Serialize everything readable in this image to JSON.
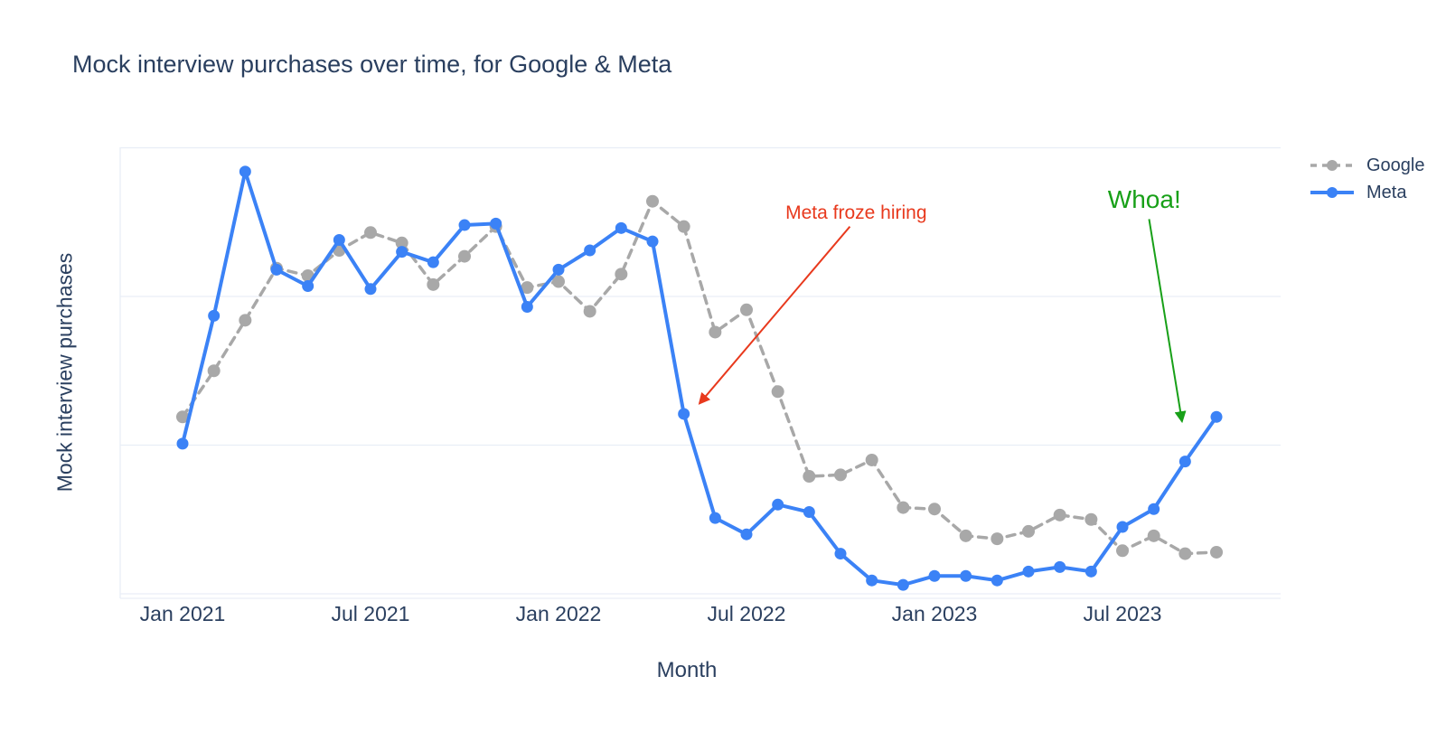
{
  "chart": {
    "title": "Mock interview purchases over time, for Google & Meta",
    "xlabel": "Month",
    "ylabel": "Mock interview purchases"
  },
  "colors": {
    "background": "#ffffff",
    "text": "#2a3f5f",
    "grid": "#e9eef6",
    "google": "#a8a8a8",
    "meta": "#3b82f6",
    "annotation_red": "#e8391d",
    "annotation_green": "#18a018"
  },
  "legend": {
    "items": [
      {
        "label": "Google"
      },
      {
        "label": "Meta"
      }
    ]
  },
  "chart_data": {
    "type": "line",
    "title": "Mock interview purchases over time, for Google & Meta",
    "xlabel": "Month",
    "ylabel": "Mock interview purchases",
    "grid": true,
    "legend_position": "right",
    "ylim": [
      0,
      300
    ],
    "y_gridline_values": [
      0,
      100,
      200,
      300
    ],
    "y_tick_labels_visible": false,
    "x_categories": [
      "Jan 2021",
      "Feb 2021",
      "Mar 2021",
      "Apr 2021",
      "May 2021",
      "Jun 2021",
      "Jul 2021",
      "Aug 2021",
      "Sep 2021",
      "Oct 2021",
      "Nov 2021",
      "Dec 2021",
      "Jan 2022",
      "Feb 2022",
      "Mar 2022",
      "Apr 2022",
      "May 2022",
      "Jun 2022",
      "Jul 2022",
      "Aug 2022",
      "Sep 2022",
      "Oct 2022",
      "Nov 2022",
      "Dec 2022",
      "Jan 2023",
      "Feb 2023",
      "Mar 2023",
      "Apr 2023",
      "May 2023",
      "Jun 2023",
      "Jul 2023",
      "Aug 2023",
      "Sep 2023",
      "Oct 2023"
    ],
    "x_tick_labels": [
      "Jan 2021",
      "Jul 2021",
      "Jan 2022",
      "Jul 2022",
      "Jan 2023",
      "Jul 2023"
    ],
    "x_tick_indices": [
      0,
      6,
      12,
      18,
      24,
      30
    ],
    "series": [
      {
        "name": "Google",
        "color_key": "google",
        "line_style": "dashed",
        "marker": "circle",
        "values": [
          119,
          150,
          184,
          219,
          214,
          231,
          243,
          236,
          208,
          227,
          247,
          206,
          210,
          190,
          215,
          264,
          247,
          176,
          191,
          136,
          79,
          80,
          90,
          58,
          57,
          39,
          37,
          42,
          53,
          50,
          29,
          39,
          27,
          28
        ]
      },
      {
        "name": "Meta",
        "color_key": "meta",
        "line_style": "solid",
        "marker": "circle",
        "values": [
          101,
          187,
          284,
          218,
          207,
          238,
          205,
          230,
          223,
          248,
          249,
          193,
          218,
          231,
          246,
          237,
          121,
          51,
          40,
          60,
          55,
          27,
          9,
          6,
          12,
          12,
          9,
          15,
          18,
          15,
          45,
          57,
          89,
          119
        ]
      }
    ],
    "annotations": [
      {
        "text": "Meta froze hiring",
        "color_key": "annotation_red",
        "font_size": 21,
        "text_month": 21.5,
        "text_value": 256,
        "tail_month": 21.3,
        "tail_value": 247,
        "tip_month": 16.5,
        "tip_value": 128,
        "points_at": "Meta May 2022 drop"
      },
      {
        "text": "Whoa!",
        "color_key": "annotation_green",
        "font_size": 28,
        "text_month": 30.7,
        "text_value": 265,
        "tail_month": 30.85,
        "tail_value": 252,
        "tip_month": 31.9,
        "tip_value": 116,
        "points_at": "Meta late 2023 rebound"
      }
    ]
  }
}
